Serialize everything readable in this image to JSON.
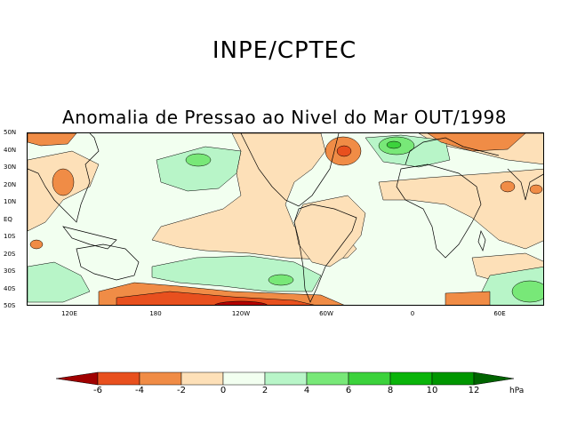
{
  "header": {
    "organization": "INPE/CPTEC",
    "title": "Anomalia de Pressao ao Nivel do Mar OUT/1998"
  },
  "map": {
    "latitude_labels": [
      "50N",
      "40N",
      "30N",
      "20N",
      "10N",
      "EQ",
      "10S",
      "20S",
      "30S",
      "40S",
      "50S"
    ],
    "longitude_labels": [
      "120E",
      "180",
      "120W",
      "60W",
      "0",
      "60E"
    ],
    "fill_colors": {
      "minus6": "#b40000",
      "minus4": "#e8501e",
      "minus2": "#f08c46",
      "minus0": "#fde0b8",
      "plus0": "#f2fff0",
      "plus2": "#b8f5c8",
      "plus4": "#78e878",
      "plus6": "#3cd23c",
      "plus8": "#0ab40a"
    }
  },
  "colorbar": {
    "tick_labels": [
      "-6",
      "-4",
      "-2",
      "0",
      "2",
      "4",
      "6",
      "8",
      "10",
      "12"
    ],
    "unit": "hPa",
    "colors": [
      "#a00000",
      "#e8501e",
      "#f08c46",
      "#fde0b8",
      "#f2fff0",
      "#b8f5c8",
      "#78e878",
      "#3cd23c",
      "#0ab40a",
      "#009600",
      "#006400"
    ]
  }
}
